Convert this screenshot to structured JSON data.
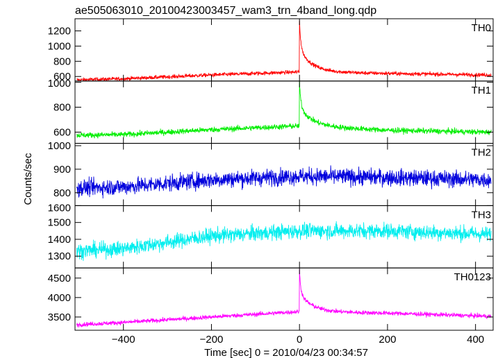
{
  "chart_data": {
    "type": "line",
    "title": "ae505063010_20100423003457_wam3_trn_4band_long.qdp",
    "xlabel": "Time [sec] 0 = 2010/04/23 00:34:57",
    "ylabel": "Counts/sec",
    "xlim": [
      -510,
      440
    ],
    "x_ticks": [
      -400,
      -200,
      0,
      200,
      400
    ],
    "x_tick_labels": [
      "−400",
      "−200",
      "0",
      "200",
      "400"
    ],
    "panels": [
      {
        "label": "TH0",
        "color": "#ff0000",
        "ylim": [
          540,
          1360
        ],
        "y_ticks": [
          600,
          800,
          1000,
          1200
        ],
        "y_tick_labels": [
          "600",
          "800",
          "1000",
          "1200"
        ],
        "y_ticks_unlabeled": [],
        "baseline_points": [
          [
            -510,
            555
          ],
          [
            -400,
            570
          ],
          [
            -200,
            620
          ],
          [
            0,
            660
          ],
          [
            200,
            640
          ],
          [
            430,
            620
          ]
        ],
        "noise": 25,
        "peak_x": 0,
        "peak_y": 1340,
        "decay_end": 450
      },
      {
        "label": "TH1",
        "color": "#00ee00",
        "ylim": [
          510,
          1010
        ],
        "y_ticks": [
          600,
          800,
          1000
        ],
        "y_tick_labels": [
          "600",
          "800",
          "1000"
        ],
        "y_ticks_unlabeled": [],
        "baseline_points": [
          [
            -510,
            575
          ],
          [
            -400,
            580
          ],
          [
            -200,
            620
          ],
          [
            0,
            650
          ],
          [
            200,
            615
          ],
          [
            430,
            600
          ]
        ],
        "noise": 22,
        "peak_x": 0,
        "peak_y": 1000,
        "decay_end": 630
      },
      {
        "label": "TH2",
        "color": "#0000dd",
        "ylim": [
          745,
          1010
        ],
        "y_ticks": [
          800,
          900,
          1000
        ],
        "y_tick_labels": [
          "800",
          "900",
          "1000"
        ],
        "y_ticks_unlabeled": [],
        "baseline_points": [
          [
            -510,
            820
          ],
          [
            -400,
            825
          ],
          [
            -200,
            855
          ],
          [
            0,
            870
          ],
          [
            200,
            865
          ],
          [
            430,
            855
          ]
        ],
        "noise": 35,
        "peak_x": null,
        "peak_y": null,
        "decay_end": null
      },
      {
        "label": "TH3",
        "color": "#00eeee",
        "ylim": [
          1230,
          1600
        ],
        "y_ticks": [
          1300,
          1400,
          1500,
          1600
        ],
        "y_tick_labels": [
          "1300",
          "1400",
          "1500",
          "1600"
        ],
        "y_ticks_unlabeled": [],
        "baseline_points": [
          [
            -510,
            1330
          ],
          [
            -400,
            1345
          ],
          [
            -200,
            1420
          ],
          [
            0,
            1450
          ],
          [
            200,
            1450
          ],
          [
            430,
            1430
          ]
        ],
        "noise": 45,
        "peak_x": null,
        "peak_y": null,
        "decay_end": null
      },
      {
        "label": "TH0123",
        "color": "#ff00ff",
        "ylim": [
          3160,
          4760
        ],
        "y_ticks": [
          3500,
          4000,
          4500
        ],
        "y_tick_labels": [
          "3500",
          "4000",
          "4500"
        ],
        "y_ticks_unlabeled": [],
        "baseline_points": [
          [
            -510,
            3300
          ],
          [
            -400,
            3360
          ],
          [
            -200,
            3500
          ],
          [
            0,
            3640
          ],
          [
            200,
            3600
          ],
          [
            430,
            3520
          ]
        ],
        "noise": 55,
        "peak_x": 0,
        "peak_y": 4700,
        "decay_end": 3580
      }
    ],
    "grid": false,
    "legend": "none"
  }
}
